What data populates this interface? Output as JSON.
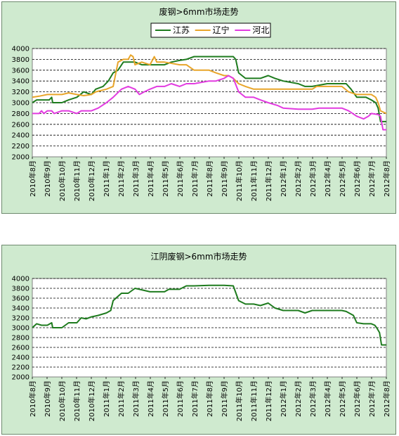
{
  "colors": {
    "江苏": "#1e7b1e",
    "辽宁": "#e8a52a",
    "河北": "#e23be0",
    "plot_bg": "#ffffff",
    "panel_bg": "#cfeacf",
    "grid": "#000000"
  },
  "chart_data": [
    {
      "type": "line",
      "title": "废钢>6mm市场走势",
      "legend_position": "top-center",
      "grid": "dashed-horizontal",
      "ylim": [
        2000,
        4000
      ],
      "yticks": [
        2000,
        2200,
        2400,
        2600,
        2800,
        3000,
        3200,
        3400,
        3600,
        3800,
        4000
      ],
      "xlim": [
        "2010-08-01",
        "2012-08-01"
      ],
      "categories": [
        "2010年8月",
        "2010年9月",
        "2010年10月",
        "2010年11月",
        "2010年12月",
        "2011年1月",
        "2011年2月",
        "2011年3月",
        "2011年4月",
        "2011年5月",
        "2011年6月",
        "2011年7月",
        "2011年8月",
        "2011年9月",
        "2011年10月",
        "2011年11月",
        "2011年12月",
        "2012年1月",
        "2012年2月",
        "2012年3月",
        "2012年4月",
        "2012年5月",
        "2012年6月",
        "2012年7月",
        "2012年8月"
      ],
      "series": [
        {
          "name": "江苏",
          "x": [
            "2010-08-01",
            "2010-08-10",
            "2010-08-20",
            "2010-09-05",
            "2010-09-10",
            "2010-09-12",
            "2010-10-01",
            "2010-10-15",
            "2010-11-01",
            "2010-11-15",
            "2010-12-01",
            "2010-12-10",
            "2010-12-25",
            "2011-01-05",
            "2011-01-15",
            "2011-01-25",
            "2011-02-05",
            "2011-02-15",
            "2011-03-01",
            "2011-03-15",
            "2011-04-01",
            "2011-05-01",
            "2011-05-15",
            "2011-06-01",
            "2011-06-15",
            "2011-07-01",
            "2011-08-01",
            "2011-09-01",
            "2011-09-20",
            "2011-09-25",
            "2011-10-01",
            "2011-10-15",
            "2011-11-01",
            "2011-11-15",
            "2011-12-01",
            "2011-12-15",
            "2012-01-01",
            "2012-02-01",
            "2012-02-15",
            "2012-03-01",
            "2012-04-01",
            "2012-05-01",
            "2012-05-10",
            "2012-05-20",
            "2012-06-01",
            "2012-06-20",
            "2012-07-01",
            "2012-07-10",
            "2012-07-15",
            "2012-07-20",
            "2012-08-01"
          ],
          "y": [
            3000,
            3050,
            3050,
            3050,
            3100,
            3000,
            3000,
            3050,
            3100,
            3200,
            3150,
            3250,
            3300,
            3400,
            3550,
            3600,
            3750,
            3750,
            3750,
            3700,
            3700,
            3700,
            3750,
            3780,
            3800,
            3850,
            3850,
            3850,
            3850,
            3800,
            3550,
            3450,
            3450,
            3450,
            3500,
            3450,
            3400,
            3350,
            3300,
            3300,
            3350,
            3350,
            3350,
            3250,
            3100,
            3100,
            3050,
            3000,
            2900,
            2650,
            2650
          ]
        },
        {
          "name": "辽宁",
          "x": [
            "2010-08-01",
            "2010-08-15",
            "2010-09-01",
            "2010-10-01",
            "2010-10-15",
            "2010-11-01",
            "2010-11-15",
            "2010-12-01",
            "2010-12-10",
            "2011-01-01",
            "2011-01-15",
            "2011-01-25",
            "2011-02-05",
            "2011-02-15",
            "2011-02-20",
            "2011-02-25",
            "2011-03-01",
            "2011-03-15",
            "2011-04-01",
            "2011-04-10",
            "2011-04-15",
            "2011-05-01",
            "2011-06-01",
            "2011-06-15",
            "2011-07-01",
            "2011-08-01",
            "2011-08-15",
            "2011-09-01",
            "2011-09-10",
            "2011-09-20",
            "2011-10-01",
            "2011-10-15",
            "2011-11-01",
            "2011-12-01",
            "2012-01-01",
            "2012-02-01",
            "2012-03-01",
            "2012-03-10",
            "2012-04-01",
            "2012-05-01",
            "2012-05-15",
            "2012-06-01",
            "2012-07-01",
            "2012-07-10",
            "2012-07-15",
            "2012-07-20",
            "2012-08-01"
          ],
          "y": [
            3100,
            3120,
            3150,
            3150,
            3180,
            3150,
            3130,
            3150,
            3200,
            3250,
            3300,
            3750,
            3800,
            3800,
            3880,
            3850,
            3700,
            3750,
            3700,
            3850,
            3750,
            3750,
            3700,
            3700,
            3600,
            3600,
            3550,
            3500,
            3500,
            3450,
            3350,
            3300,
            3250,
            3250,
            3250,
            3250,
            3250,
            3300,
            3300,
            3300,
            3200,
            3150,
            3150,
            3100,
            3000,
            2850,
            2800
          ]
        },
        {
          "name": "河北",
          "x": [
            "2010-08-01",
            "2010-08-15",
            "2010-08-20",
            "2010-08-25",
            "2010-09-01",
            "2010-09-10",
            "2010-09-15",
            "2010-10-01",
            "2010-10-15",
            "2010-11-01",
            "2010-11-10",
            "2010-11-15",
            "2010-12-01",
            "2010-12-15",
            "2011-01-01",
            "2011-01-15",
            "2011-02-01",
            "2011-02-15",
            "2011-03-01",
            "2011-03-10",
            "2011-03-20",
            "2011-04-01",
            "2011-04-15",
            "2011-05-01",
            "2011-05-15",
            "2011-06-01",
            "2011-06-15",
            "2011-07-01",
            "2011-08-01",
            "2011-08-15",
            "2011-09-01",
            "2011-09-10",
            "2011-09-20",
            "2011-10-01",
            "2011-10-15",
            "2011-11-01",
            "2011-11-15",
            "2011-12-01",
            "2011-12-20",
            "2012-01-01",
            "2012-02-01",
            "2012-03-01",
            "2012-03-15",
            "2012-04-01",
            "2012-04-20",
            "2012-05-01",
            "2012-05-15",
            "2012-06-01",
            "2012-06-15",
            "2012-06-25",
            "2012-07-01",
            "2012-07-15",
            "2012-07-20",
            "2012-07-25",
            "2012-08-01"
          ],
          "y": [
            2800,
            2800,
            2850,
            2800,
            2850,
            2850,
            2800,
            2850,
            2850,
            2800,
            2850,
            2850,
            2850,
            2900,
            3000,
            3100,
            3250,
            3300,
            3250,
            3150,
            3200,
            3250,
            3300,
            3300,
            3350,
            3300,
            3350,
            3350,
            3400,
            3400,
            3450,
            3500,
            3450,
            3200,
            3100,
            3100,
            3050,
            3000,
            2950,
            2900,
            2880,
            2880,
            2900,
            2900,
            2900,
            2900,
            2850,
            2750,
            2700,
            2750,
            2800,
            2780,
            2750,
            2500,
            2500
          ]
        }
      ]
    },
    {
      "type": "line",
      "title": "江阴废钢>6mm市场走势",
      "grid": "dashed-horizontal",
      "ylim": [
        2000,
        4000
      ],
      "yticks": [
        2000,
        2200,
        2400,
        2600,
        2800,
        3000,
        3200,
        3400,
        3600,
        3800,
        4000
      ],
      "xlim": [
        "2010-08-01",
        "2012-08-01"
      ],
      "categories": [
        "2010年8月",
        "2010年9月",
        "2010年10月",
        "2010年11月",
        "2010年12月",
        "2011年1月",
        "2011年2月",
        "2011年3月",
        "2011年4月",
        "2011年5月",
        "2011年6月",
        "2011年7月",
        "2011年8月",
        "2011年9月",
        "2011年10月",
        "2011年11月",
        "2011年12月",
        "2012年1月",
        "2012年2月",
        "2012年3月",
        "2012年4月",
        "2012年5月",
        "2012年6月",
        "2012年7月",
        "2012年8月"
      ],
      "series": [
        {
          "x": [
            "2010-08-01",
            "2010-08-10",
            "2010-08-20",
            "2010-09-01",
            "2010-09-10",
            "2010-09-12",
            "2010-10-01",
            "2010-10-15",
            "2010-11-01",
            "2010-11-10",
            "2010-11-20",
            "2010-12-01",
            "2010-12-15",
            "2011-01-01",
            "2011-01-10",
            "2011-01-15",
            "2011-02-01",
            "2011-02-15",
            "2011-03-01",
            "2011-03-10",
            "2011-04-01",
            "2011-05-01",
            "2011-05-10",
            "2011-06-01",
            "2011-06-15",
            "2011-07-01",
            "2011-08-01",
            "2011-09-01",
            "2011-09-20",
            "2011-10-01",
            "2011-10-15",
            "2011-11-01",
            "2011-11-15",
            "2011-12-01",
            "2011-12-15",
            "2012-01-01",
            "2012-02-01",
            "2012-02-15",
            "2012-03-01",
            "2012-04-01",
            "2012-05-01",
            "2012-05-10",
            "2012-05-25",
            "2012-06-01",
            "2012-06-15",
            "2012-07-01",
            "2012-07-08",
            "2012-07-12",
            "2012-07-18",
            "2012-07-22",
            "2012-08-01"
          ],
          "y": [
            3000,
            3080,
            3050,
            3050,
            3100,
            3000,
            3000,
            3100,
            3100,
            3200,
            3180,
            3220,
            3250,
            3300,
            3350,
            3550,
            3700,
            3700,
            3800,
            3780,
            3730,
            3730,
            3780,
            3780,
            3850,
            3850,
            3860,
            3860,
            3850,
            3550,
            3480,
            3480,
            3450,
            3500,
            3400,
            3350,
            3350,
            3300,
            3350,
            3350,
            3350,
            3330,
            3250,
            3100,
            3080,
            3080,
            3050,
            3000,
            2900,
            2650,
            2650
          ]
        }
      ]
    }
  ]
}
